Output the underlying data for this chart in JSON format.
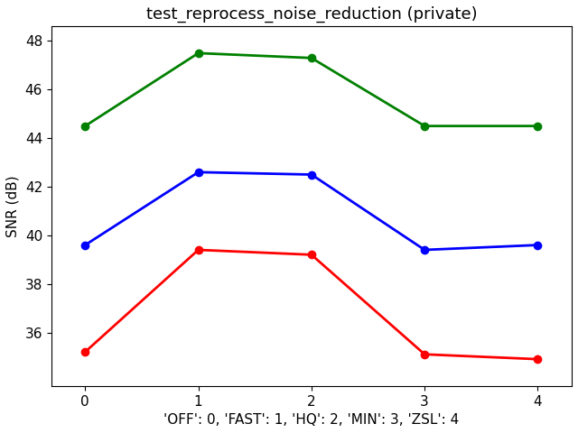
{
  "title": "test_reprocess_noise_reduction (private)",
  "xlabel": "'OFF': 0, 'FAST': 1, 'HQ': 2, 'MIN': 3, 'ZSL': 4",
  "ylabel": "SNR (dB)",
  "x": [
    0,
    1,
    2,
    3,
    4
  ],
  "series": [
    {
      "color": "green",
      "values": [
        44.5,
        47.5,
        47.3,
        44.5,
        44.5
      ]
    },
    {
      "color": "blue",
      "values": [
        39.6,
        42.6,
        42.5,
        39.4,
        39.6
      ]
    },
    {
      "color": "red",
      "values": [
        35.2,
        39.4,
        39.2,
        35.1,
        34.9
      ]
    }
  ],
  "ylim": [
    33.8,
    48.6
  ],
  "yticks": [
    36,
    38,
    40,
    42,
    44,
    46,
    48
  ],
  "xticks": [
    0,
    1,
    2,
    3,
    4
  ],
  "marker": "o",
  "markersize": 6,
  "linewidth": 2,
  "title_fontsize": 13,
  "label_fontsize": 11,
  "tick_fontsize": 11,
  "background_color": "#ffffff"
}
